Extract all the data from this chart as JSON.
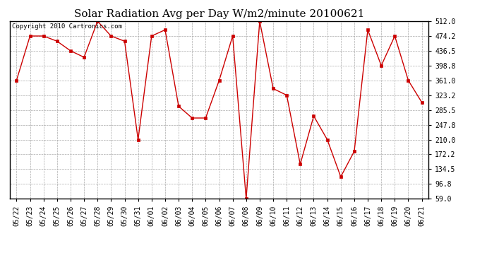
{
  "title": "Solar Radiation Avg per Day W/m2/minute 20100621",
  "copyright_text": "Copyright 2010 Cartronics.com",
  "dates": [
    "05/22",
    "05/23",
    "05/24",
    "05/25",
    "05/26",
    "05/27",
    "05/28",
    "05/29",
    "05/30",
    "05/31",
    "06/01",
    "06/02",
    "06/03",
    "06/04",
    "06/05",
    "06/06",
    "06/07",
    "06/08",
    "06/09",
    "06/10",
    "06/11",
    "06/12",
    "06/13",
    "06/14",
    "06/15",
    "06/16",
    "06/17",
    "06/18",
    "06/19",
    "06/20",
    "06/21"
  ],
  "values": [
    361.0,
    474.2,
    474.2,
    461.0,
    436.5,
    420.0,
    512.0,
    474.2,
    461.0,
    210.0,
    474.2,
    490.0,
    295.0,
    265.0,
    265.0,
    361.0,
    474.2,
    59.0,
    512.0,
    340.0,
    323.2,
    147.0,
    270.0,
    210.0,
    115.0,
    180.0,
    490.0,
    398.8,
    474.2,
    361.0,
    305.0
  ],
  "yticks": [
    59.0,
    96.8,
    134.5,
    172.2,
    210.0,
    247.8,
    285.5,
    323.2,
    361.0,
    398.8,
    436.5,
    474.2,
    512.0
  ],
  "line_color": "#cc0000",
  "marker": "s",
  "marker_size": 3,
  "grid_color": "#aaaaaa",
  "bg_color": "#ffffff",
  "title_fontsize": 11,
  "tick_fontsize": 7,
  "copyright_fontsize": 6.5
}
